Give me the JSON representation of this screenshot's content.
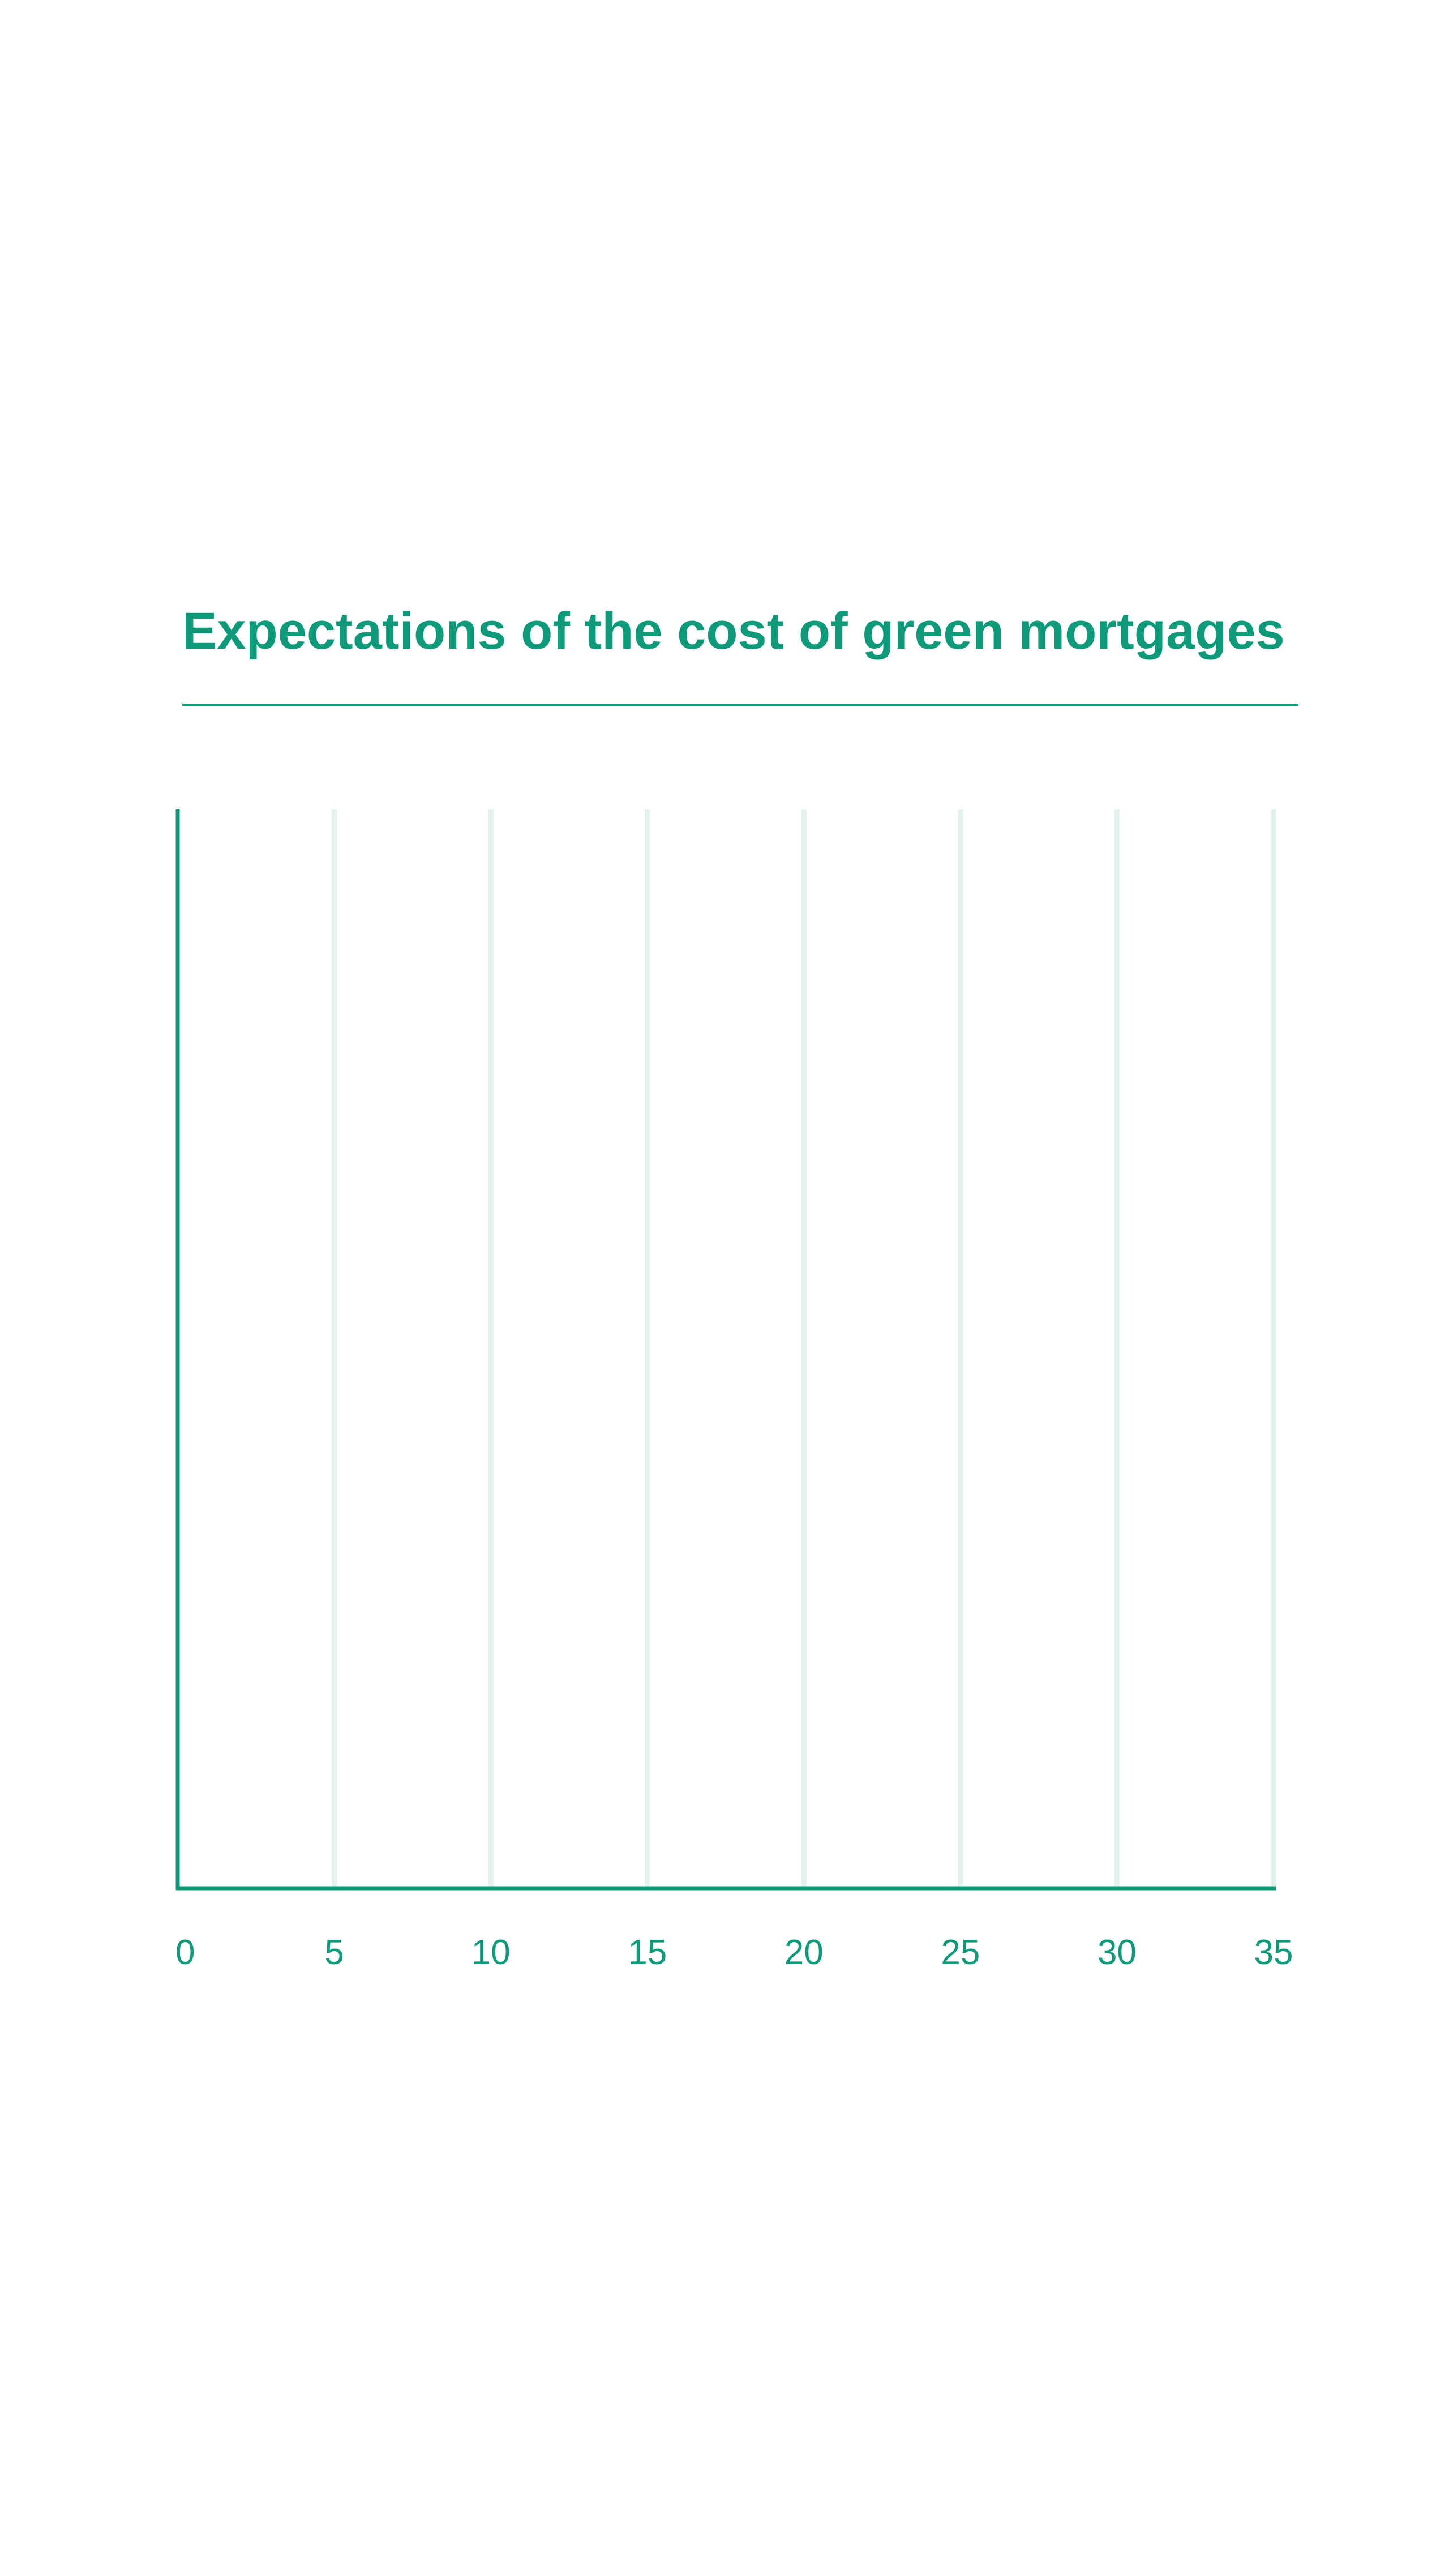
{
  "colors": {
    "accent": "#0e9a78",
    "gridline": "#e3f2ef",
    "background": "#ffffff"
  },
  "chart_data": {
    "type": "bar",
    "orientation": "horizontal",
    "title": "Expectations of the cost of green mortgages",
    "categories": [],
    "series": [],
    "xlim": [
      0,
      35
    ],
    "x_ticks": [
      "0",
      "5",
      "10",
      "15",
      "20",
      "25",
      "30",
      "35"
    ],
    "grid": true
  }
}
